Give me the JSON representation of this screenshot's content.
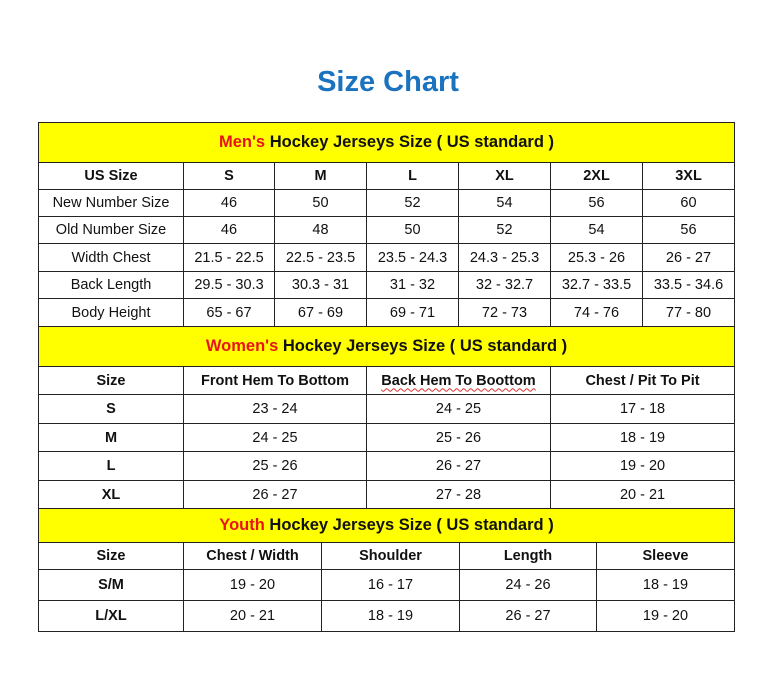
{
  "title": "Size Chart",
  "colors": {
    "title": "#1b72be",
    "section_bg": "#ffff00",
    "accent_red": "#e8141a"
  },
  "mens": {
    "heading_accent": "Men's",
    "heading_rest": " Hockey Jerseys Size ( US standard )",
    "header": [
      "US Size",
      "S",
      "M",
      "L",
      "XL",
      "2XL",
      "3XL"
    ],
    "rows": [
      [
        "New Number Size",
        "46",
        "50",
        "52",
        "54",
        "56",
        "60"
      ],
      [
        "Old Number Size",
        "46",
        "48",
        "50",
        "52",
        "54",
        "56"
      ],
      [
        "Width Chest",
        "21.5 - 22.5",
        "22.5 - 23.5",
        "23.5 - 24.3",
        "24.3 - 25.3",
        "25.3 - 26",
        "26 - 27"
      ],
      [
        "Back Length",
        "29.5 - 30.3",
        "30.3 - 31",
        "31 - 32",
        "32 - 32.7",
        "32.7 - 33.5",
        "33.5 - 34.6"
      ],
      [
        "Body Height",
        "65 - 67",
        "67 - 69",
        "69 - 71",
        "72 - 73",
        "74 - 76",
        "77 - 80"
      ]
    ]
  },
  "womens": {
    "heading_accent": "Women's",
    "heading_rest": " Hockey Jerseys Size ( US standard )",
    "header": [
      "Size",
      "Front Hem To Bottom",
      "Back Hem To Boottom",
      "Chest / Pit To Pit"
    ],
    "rows": [
      [
        "S",
        "23 - 24",
        "24 - 25",
        "17 - 18"
      ],
      [
        "M",
        "24 - 25",
        "25 - 26",
        "18 - 19"
      ],
      [
        "L",
        "25 - 26",
        "26 - 27",
        "19 - 20"
      ],
      [
        "XL",
        "26 - 27",
        "27 - 28",
        "20 - 21"
      ]
    ]
  },
  "youth": {
    "heading_accent": "Youth",
    "heading_rest": " Hockey Jerseys Size ( US standard )",
    "header": [
      "Size",
      "Chest / Width",
      "Shoulder",
      "Length",
      "Sleeve"
    ],
    "rows": [
      [
        "S/M",
        "19 - 20",
        "16 - 17",
        "24 - 26",
        "18 - 19"
      ],
      [
        "L/XL",
        "20 - 21",
        "18 - 19",
        "26 - 27",
        "19 - 20"
      ]
    ]
  }
}
